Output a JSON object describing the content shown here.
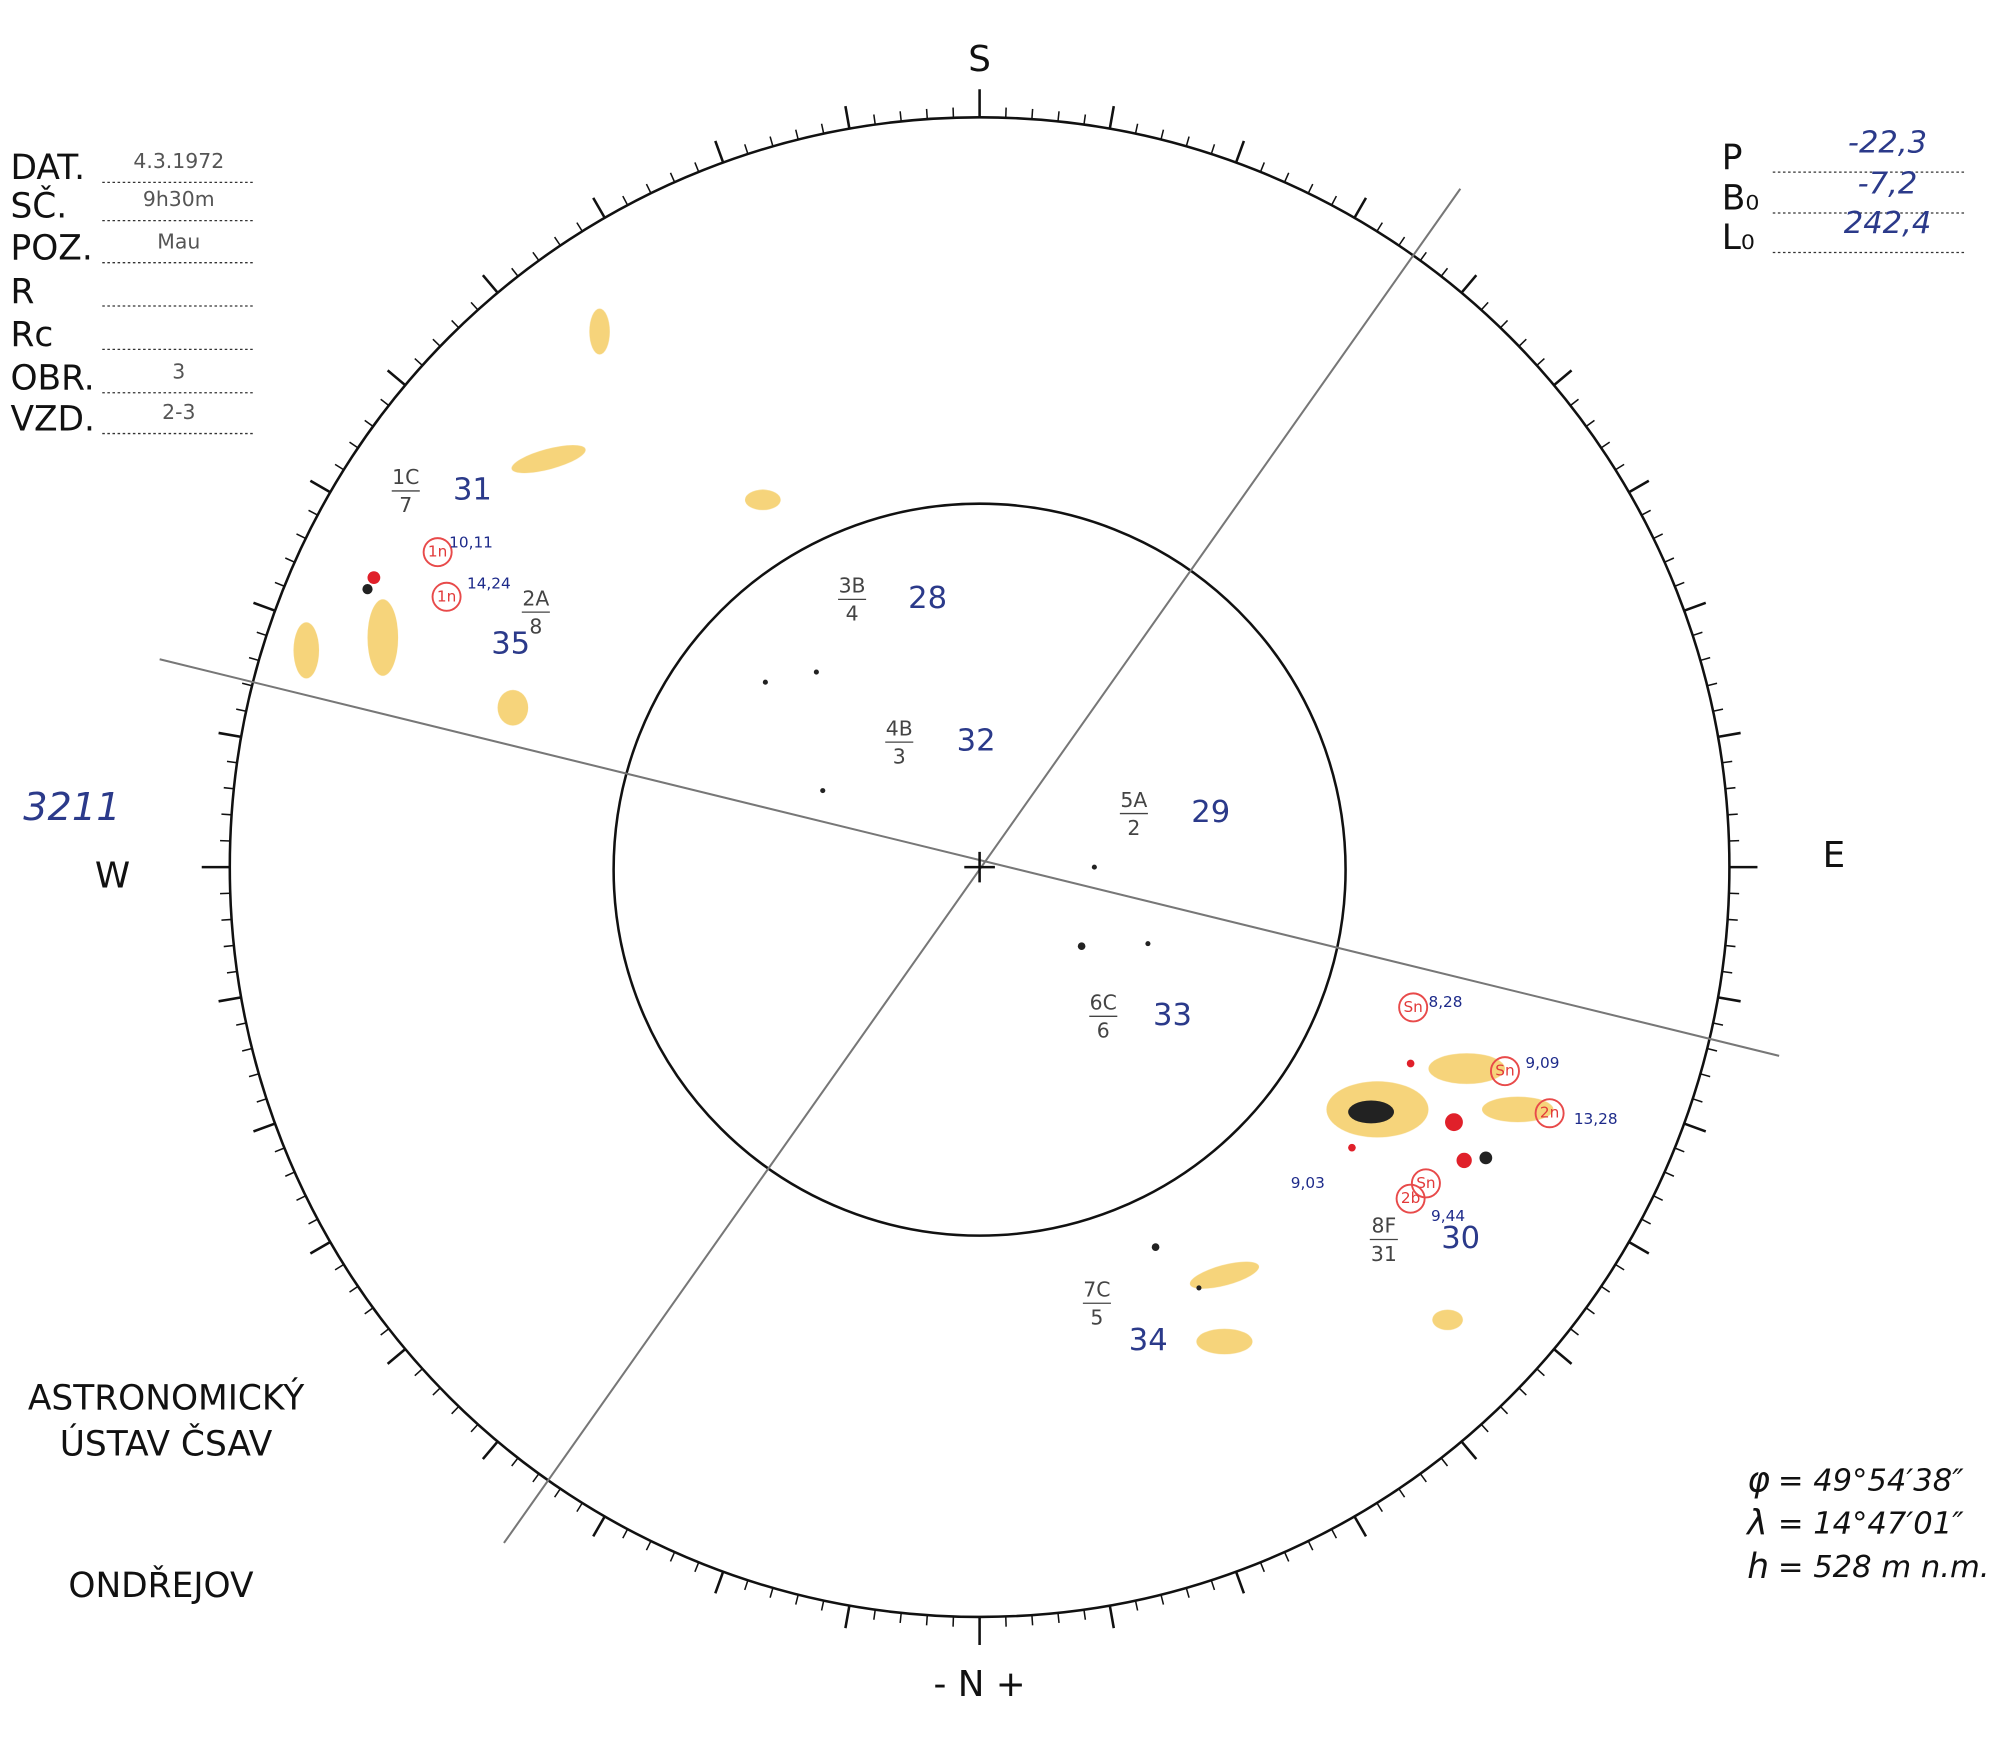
{
  "header": {
    "left": [
      {
        "label": "DAT.",
        "value": "4.3.1972"
      },
      {
        "label": "SČ.",
        "value": "9h30m"
      },
      {
        "label": "POZ.",
        "value": "Mau"
      },
      {
        "label": "R"
      },
      {
        "label": "Rc"
      },
      {
        "label": "OBR.",
        "value": "3"
      },
      {
        "label": "VZD.",
        "value": "2-3"
      }
    ],
    "right": [
      {
        "label": "P",
        "value": "-22,3"
      },
      {
        "label": "B₀",
        "value": "-7,2"
      },
      {
        "label": "L₀",
        "value": "242,4"
      }
    ]
  },
  "compass": {
    "top": "S",
    "left": "W",
    "right": "E",
    "bottom": "- N +"
  },
  "drawing_number": "3211",
  "groups": [
    {
      "class": "1C",
      "count": "7",
      "number": "31"
    },
    {
      "class": "2A",
      "count": "8",
      "number": "35"
    },
    {
      "class": "3B",
      "count": "4",
      "number": "28"
    },
    {
      "class": "4B",
      "count": "3",
      "number": "32"
    },
    {
      "class": "5A",
      "count": "2",
      "number": "29"
    },
    {
      "class": "6C",
      "count": "6",
      "number": "33"
    },
    {
      "class": "7C",
      "count": "5",
      "number": "34"
    },
    {
      "class": "8F",
      "count": "31",
      "number": "30"
    }
  ],
  "flares": [
    {
      "importance": "1n",
      "time": "10,11"
    },
    {
      "importance": "1n",
      "time": "14,24"
    },
    {
      "importance": "Sn",
      "time": "8,28"
    },
    {
      "importance": "Sn",
      "time": "9,09"
    },
    {
      "importance": "2n",
      "time": "13,28"
    },
    {
      "importance": "Sn",
      "time": "9,03"
    },
    {
      "importance": "2b",
      "time": "9,44"
    }
  ],
  "institute": {
    "lines": [
      "ASTRONOMICKÝ",
      "ÚSTAV ČSAV"
    ],
    "place": "ONDŘEJOV"
  },
  "location": [
    {
      "symbol": "φ",
      "value": "= 49°54′38″"
    },
    {
      "symbol": "λ",
      "value": "= 14°47′01″"
    },
    {
      "symbol": "h",
      "value": "= 528 m n.m."
    }
  ]
}
